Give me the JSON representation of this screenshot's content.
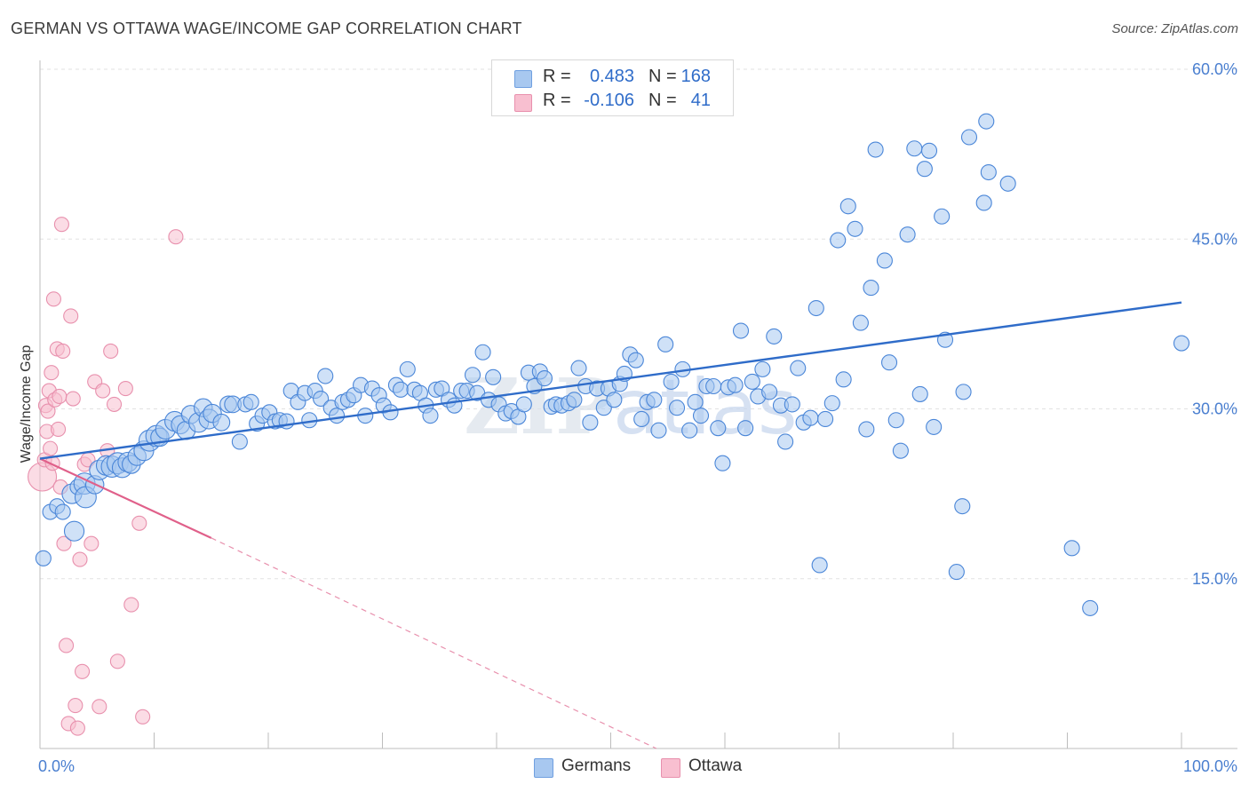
{
  "title": "GERMAN VS OTTAWA WAGE/INCOME GAP CORRELATION CHART",
  "source": "Source: ZipAtlas.com",
  "watermark": "ZIPatlas",
  "legend": {
    "rows": [
      {
        "r_label": "R =",
        "r_value": "0.483",
        "n_label": "N =",
        "n_value": "168",
        "color": "#a8c8f0",
        "border": "#6f9fe0"
      },
      {
        "r_label": "R =",
        "r_value": "-0.106",
        "n_label": "N =",
        "n_value": "41",
        "color": "#f8bfd0",
        "border": "#e890ad"
      }
    ]
  },
  "bottom_legend": [
    {
      "label": "Germans",
      "color": "#a8c8f0",
      "border": "#6f9fe0"
    },
    {
      "label": "Ottawa",
      "color": "#f8bfd0",
      "border": "#e890ad"
    }
  ],
  "chart_data": {
    "type": "scatter",
    "title": "GERMAN VS OTTAWA WAGE/INCOME GAP CORRELATION CHART",
    "xlabel": "",
    "ylabel": "Wage/Income Gap",
    "xlim": [
      0,
      100
    ],
    "ylim": [
      0,
      62
    ],
    "x_tick_labels": [
      "0.0%",
      "100.0%"
    ],
    "y_ticks": [
      15,
      30,
      45,
      60
    ],
    "y_tick_labels": [
      "15.0%",
      "30.0%",
      "45.0%",
      "60.0%"
    ],
    "grid": true,
    "legend_placement": "top-center",
    "colors": {
      "germans": "#4a86d8",
      "ottawa": "#e8739c",
      "germans_line": "#2f6cc9",
      "ottawa_line": "#e0608a"
    },
    "series": [
      {
        "name": "Germans",
        "r": 0.483,
        "n": 168,
        "trend": {
          "x": [
            0,
            100
          ],
          "y": [
            25.6,
            39.4
          ]
        },
        "points": [
          [
            0.3,
            16.8,
            1
          ],
          [
            0.9,
            20.9,
            1
          ],
          [
            1.5,
            21.4,
            1
          ],
          [
            2.0,
            20.9,
            1
          ],
          [
            2.8,
            22.5,
            1.3
          ],
          [
            3.0,
            19.2,
            1.3
          ],
          [
            3.3,
            23.1,
            1
          ],
          [
            3.9,
            23.4,
            1.4
          ],
          [
            4.0,
            22.2,
            1.4
          ],
          [
            4.8,
            23.3,
            1.2
          ],
          [
            5.2,
            24.6,
            1.3
          ],
          [
            5.8,
            25.0,
            1.3
          ],
          [
            6.3,
            24.9,
            1.4
          ],
          [
            6.8,
            25.2,
            1.4
          ],
          [
            7.2,
            24.8,
            1.3
          ],
          [
            7.7,
            25.3,
            1.3
          ],
          [
            8.0,
            25.1,
            1.2
          ],
          [
            8.5,
            25.8,
            1.2
          ],
          [
            9.1,
            26.3,
            1.3
          ],
          [
            9.6,
            27.2,
            1.4
          ],
          [
            10.2,
            27.6,
            1.4
          ],
          [
            10.5,
            27.5,
            1.2
          ],
          [
            11.0,
            28.2,
            1.3
          ],
          [
            11.8,
            28.9,
            1.3
          ],
          [
            12.3,
            28.6,
            1.2
          ],
          [
            12.8,
            28.1,
            1.2
          ],
          [
            13.2,
            29.5,
            1.2
          ],
          [
            13.9,
            28.8,
            1.3
          ],
          [
            14.3,
            30.1,
            1.2
          ],
          [
            14.8,
            29.1,
            1.3
          ],
          [
            15.1,
            29.6,
            1.2
          ],
          [
            15.9,
            28.8,
            1.1
          ],
          [
            16.5,
            30.4,
            1.1
          ],
          [
            16.9,
            30.4,
            1.1
          ],
          [
            17.5,
            27.1,
            1
          ],
          [
            18.0,
            30.4,
            1
          ],
          [
            18.5,
            30.6,
            1
          ],
          [
            19.0,
            28.7,
            1
          ],
          [
            19.5,
            29.4,
            1
          ],
          [
            20.1,
            29.7,
            1
          ],
          [
            20.6,
            28.9,
            1
          ],
          [
            21.0,
            29.0,
            1
          ],
          [
            21.6,
            28.9,
            1
          ],
          [
            22.0,
            31.6,
            1
          ],
          [
            22.6,
            30.6,
            1
          ],
          [
            23.2,
            31.4,
            1
          ],
          [
            23.6,
            29.0,
            1
          ],
          [
            24.1,
            31.6,
            1
          ],
          [
            24.6,
            30.9,
            1
          ],
          [
            25.0,
            32.9,
            1
          ],
          [
            25.5,
            30.1,
            1
          ],
          [
            26.0,
            29.4,
            1
          ],
          [
            26.5,
            30.6,
            1
          ],
          [
            27.0,
            30.8,
            1
          ],
          [
            27.5,
            31.2,
            1
          ],
          [
            28.1,
            32.1,
            1
          ],
          [
            28.5,
            29.4,
            1
          ],
          [
            29.1,
            31.8,
            1
          ],
          [
            29.7,
            31.2,
            1
          ],
          [
            30.1,
            30.3,
            1
          ],
          [
            30.7,
            29.7,
            1
          ],
          [
            31.2,
            32.1,
            1
          ],
          [
            31.6,
            31.7,
            1
          ],
          [
            32.2,
            33.5,
            1
          ],
          [
            32.8,
            31.7,
            1
          ],
          [
            33.3,
            31.4,
            1
          ],
          [
            33.8,
            30.3,
            1
          ],
          [
            34.2,
            29.4,
            1
          ],
          [
            34.7,
            31.7,
            1
          ],
          [
            35.2,
            31.8,
            1
          ],
          [
            35.8,
            30.8,
            1
          ],
          [
            36.3,
            30.3,
            1
          ],
          [
            36.9,
            31.6,
            1
          ],
          [
            37.4,
            31.6,
            1
          ],
          [
            37.9,
            33.0,
            1
          ],
          [
            38.3,
            31.4,
            1
          ],
          [
            38.8,
            35.0,
            1
          ],
          [
            39.3,
            30.8,
            1
          ],
          [
            39.7,
            32.8,
            1
          ],
          [
            40.2,
            30.4,
            1
          ],
          [
            40.8,
            29.6,
            1
          ],
          [
            41.3,
            29.8,
            1
          ],
          [
            41.9,
            29.3,
            1
          ],
          [
            42.4,
            30.4,
            1
          ],
          [
            42.8,
            33.2,
            1
          ],
          [
            43.3,
            32.0,
            1
          ],
          [
            43.8,
            33.3,
            1
          ],
          [
            44.2,
            32.7,
            1
          ],
          [
            44.8,
            30.2,
            1
          ],
          [
            45.2,
            30.4,
            1
          ],
          [
            45.7,
            30.3,
            1
          ],
          [
            46.3,
            30.5,
            1
          ],
          [
            46.8,
            30.8,
            1
          ],
          [
            47.2,
            33.6,
            1
          ],
          [
            47.8,
            32.0,
            1
          ],
          [
            48.2,
            28.8,
            1
          ],
          [
            48.8,
            31.8,
            1
          ],
          [
            49.4,
            30.1,
            1
          ],
          [
            49.8,
            31.8,
            1
          ],
          [
            50.3,
            30.8,
            1
          ],
          [
            50.8,
            32.2,
            1
          ],
          [
            51.2,
            33.1,
            1
          ],
          [
            51.7,
            34.8,
            1
          ],
          [
            52.2,
            34.3,
            1
          ],
          [
            52.7,
            29.1,
            1
          ],
          [
            53.2,
            30.6,
            1
          ],
          [
            53.8,
            30.8,
            1
          ],
          [
            54.2,
            28.1,
            1
          ],
          [
            54.8,
            35.7,
            1
          ],
          [
            55.3,
            32.4,
            1
          ],
          [
            55.8,
            30.1,
            1
          ],
          [
            56.3,
            33.5,
            1
          ],
          [
            56.9,
            28.1,
            1
          ],
          [
            57.4,
            30.6,
            1
          ],
          [
            57.9,
            29.4,
            1
          ],
          [
            58.4,
            32.0,
            1
          ],
          [
            59.0,
            32.0,
            1
          ],
          [
            59.4,
            28.3,
            1
          ],
          [
            59.8,
            25.2,
            1
          ],
          [
            60.3,
            31.9,
            1
          ],
          [
            60.9,
            32.1,
            1
          ],
          [
            61.4,
            36.9,
            1
          ],
          [
            61.8,
            28.3,
            1
          ],
          [
            62.4,
            32.4,
            1
          ],
          [
            62.9,
            31.1,
            1
          ],
          [
            63.3,
            33.5,
            1
          ],
          [
            63.9,
            31.5,
            1
          ],
          [
            64.3,
            36.4,
            1
          ],
          [
            64.9,
            30.3,
            1
          ],
          [
            65.3,
            27.1,
            1
          ],
          [
            65.9,
            30.4,
            1
          ],
          [
            66.4,
            33.6,
            1
          ],
          [
            66.9,
            28.8,
            1
          ],
          [
            67.5,
            29.2,
            1
          ],
          [
            68.0,
            38.9,
            1
          ],
          [
            68.3,
            16.2,
            1
          ],
          [
            68.8,
            29.1,
            1
          ],
          [
            69.4,
            30.5,
            1
          ],
          [
            69.9,
            44.9,
            1
          ],
          [
            70.4,
            32.6,
            1
          ],
          [
            70.8,
            47.9,
            1
          ],
          [
            71.4,
            45.9,
            1
          ],
          [
            71.9,
            37.6,
            1
          ],
          [
            72.4,
            28.2,
            1
          ],
          [
            72.8,
            40.7,
            1
          ],
          [
            73.2,
            52.9,
            1
          ],
          [
            74.0,
            43.1,
            1
          ],
          [
            74.4,
            34.1,
            1
          ],
          [
            75.0,
            29.0,
            1
          ],
          [
            75.4,
            26.3,
            1
          ],
          [
            76.0,
            45.4,
            1
          ],
          [
            76.6,
            53.0,
            1
          ],
          [
            77.1,
            31.3,
            1
          ],
          [
            77.5,
            51.2,
            1
          ],
          [
            77.9,
            52.8,
            1
          ],
          [
            78.3,
            28.4,
            1
          ],
          [
            79.0,
            47.0,
            1
          ],
          [
            79.3,
            36.1,
            1
          ],
          [
            80.3,
            15.6,
            1
          ],
          [
            80.8,
            21.4,
            1
          ],
          [
            80.9,
            31.5,
            1
          ],
          [
            81.4,
            54.0,
            1
          ],
          [
            82.7,
            48.2,
            1
          ],
          [
            82.9,
            55.4,
            1
          ],
          [
            83.1,
            50.9,
            1
          ],
          [
            84.8,
            49.9,
            1
          ],
          [
            90.4,
            17.7,
            1
          ],
          [
            92.0,
            12.4,
            1
          ],
          [
            100.0,
            35.8,
            1
          ]
        ]
      },
      {
        "name": "Ottawa",
        "r": -0.106,
        "n": 41,
        "trend": {
          "x": [
            0,
            15
          ],
          "y": [
            25.6,
            18.6
          ]
        },
        "trend_extended": {
          "x": [
            15,
            54
          ],
          "y": [
            18.6,
            0
          ]
        },
        "points": [
          [
            0.2,
            24.0,
            2
          ],
          [
            0.4,
            25.5,
            1
          ],
          [
            0.5,
            30.3,
            1
          ],
          [
            0.6,
            28.0,
            1
          ],
          [
            0.7,
            29.8,
            1
          ],
          [
            0.8,
            31.6,
            1
          ],
          [
            0.9,
            26.5,
            1
          ],
          [
            1.0,
            33.2,
            1
          ],
          [
            1.1,
            25.2,
            1
          ],
          [
            1.2,
            39.7,
            1
          ],
          [
            1.3,
            30.8,
            1
          ],
          [
            1.5,
            35.3,
            1
          ],
          [
            1.6,
            28.2,
            1
          ],
          [
            1.7,
            31.1,
            1
          ],
          [
            1.8,
            23.1,
            1
          ],
          [
            1.9,
            46.3,
            1
          ],
          [
            2.0,
            35.1,
            1
          ],
          [
            2.1,
            18.1,
            1
          ],
          [
            2.3,
            9.1,
            1
          ],
          [
            2.5,
            2.2,
            1
          ],
          [
            2.7,
            38.2,
            1
          ],
          [
            2.9,
            30.9,
            1
          ],
          [
            3.1,
            3.8,
            1
          ],
          [
            3.3,
            1.8,
            1
          ],
          [
            3.5,
            16.7,
            1
          ],
          [
            3.7,
            6.8,
            1
          ],
          [
            3.9,
            25.1,
            1
          ],
          [
            4.2,
            25.5,
            1
          ],
          [
            4.5,
            18.1,
            1
          ],
          [
            4.8,
            32.4,
            1
          ],
          [
            5.2,
            3.7,
            1
          ],
          [
            5.5,
            31.6,
            1
          ],
          [
            5.9,
            26.3,
            1
          ],
          [
            6.2,
            35.1,
            1
          ],
          [
            6.5,
            30.4,
            1
          ],
          [
            6.8,
            7.7,
            1
          ],
          [
            7.5,
            31.8,
            1
          ],
          [
            8.0,
            12.7,
            1
          ],
          [
            8.7,
            19.9,
            1
          ],
          [
            9.0,
            2.8,
            1
          ],
          [
            11.9,
            45.2,
            1
          ]
        ]
      }
    ]
  }
}
